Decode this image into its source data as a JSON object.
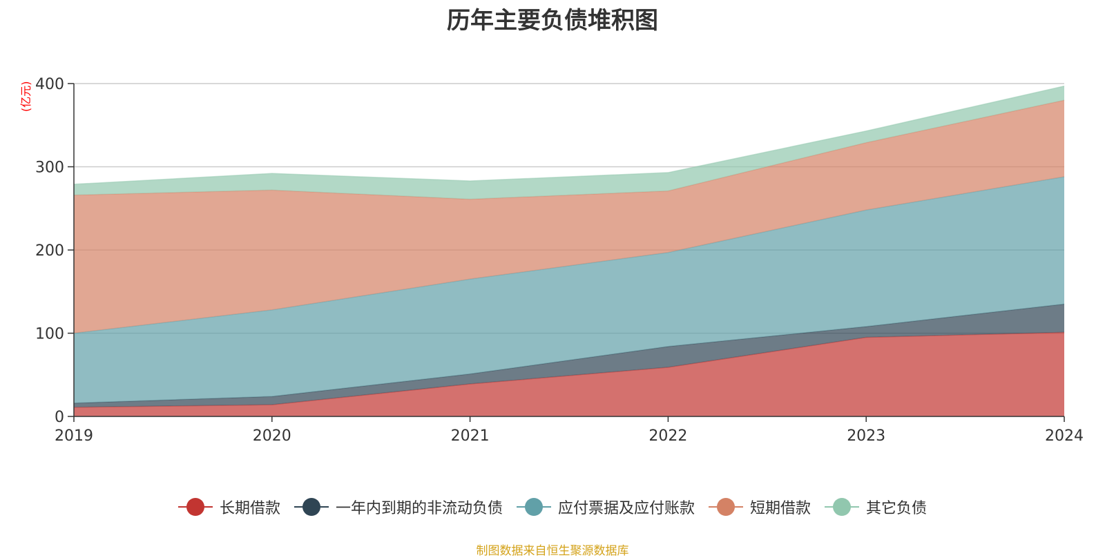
{
  "chart_data": {
    "type": "area",
    "title": "历年主要负债堆积图",
    "unit_label": "(亿元)",
    "stacked": true,
    "x": [
      "2019",
      "2020",
      "2021",
      "2022",
      "2023",
      "2024"
    ],
    "y_ticks": [
      "0",
      "100",
      "200",
      "300",
      "400"
    ],
    "ylim": [
      0,
      400
    ],
    "grid": true,
    "legend_position": "bottom",
    "series": [
      {
        "name": "长期借款",
        "color": "#c23531",
        "values": [
          11,
          14,
          39,
          59,
          95,
          101
        ]
      },
      {
        "name": "一年内到期的非流动负债",
        "color": "#2f4554",
        "values": [
          5,
          10,
          12,
          25,
          13,
          34
        ]
      },
      {
        "name": "应付票据及应付账款",
        "color": "#61a0a8",
        "values": [
          84,
          104,
          114,
          113,
          140,
          153
        ]
      },
      {
        "name": "短期借款",
        "color": "#d48265",
        "values": [
          166,
          144,
          96,
          74,
          81,
          92
        ]
      },
      {
        "name": "其它负债",
        "color": "#91c7ae",
        "values": [
          13,
          20,
          22,
          22,
          14,
          17
        ]
      }
    ]
  },
  "source_text": "制图数据来自恒生聚源数据库"
}
